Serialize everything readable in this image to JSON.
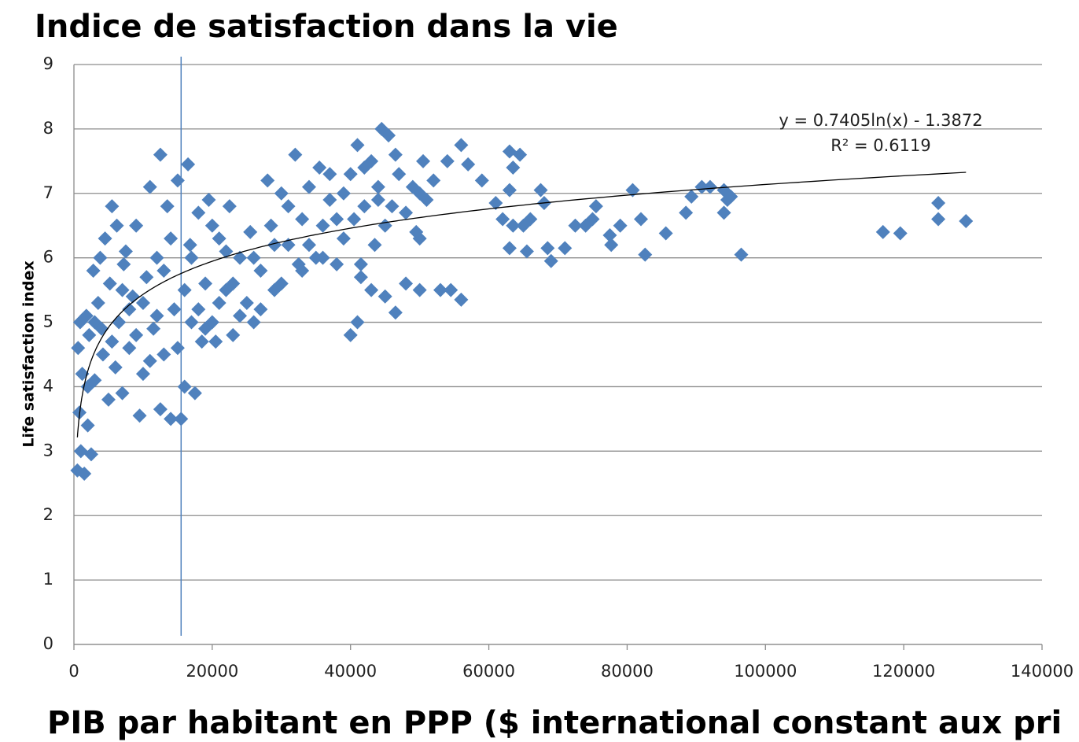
{
  "chart_data": {
    "type": "scatter",
    "title": "Indice de satisfaction dans la vie",
    "x_label": "PIB par habitant en PPP ($ international constant aux pri",
    "y_label": "Life satisfaction index",
    "color": "#4f81bd",
    "grid": true,
    "xlim": [
      0,
      140000
    ],
    "xticks": [
      0,
      20000,
      40000,
      60000,
      80000,
      100000,
      120000,
      140000
    ],
    "ylim": [
      0,
      9
    ],
    "yticks": [
      0,
      1,
      2,
      3,
      4,
      5,
      6,
      7,
      8,
      9
    ],
    "reference_line": {
      "x": 15500
    },
    "trendline": {
      "equation": "y = 0.7405ln(x) - 1.3872",
      "r_squared": "R² = 0.6119",
      "coefficient": 0.7405,
      "intercept": -1.3872
    },
    "x": [
      500,
      1500,
      1000,
      2500,
      800,
      1200,
      600,
      1800,
      2000,
      2200,
      900,
      2800,
      3000,
      3500,
      3800,
      4200,
      4500,
      5000,
      5200,
      5500,
      6000,
      6200,
      6500,
      7000,
      7200,
      7500,
      8000,
      8500,
      9000,
      9500,
      10000,
      10500,
      11000,
      11500,
      12000,
      12500,
      12500,
      13000,
      13500,
      14000,
      14500,
      15000,
      15500,
      16000,
      16500,
      16800,
      17000,
      17500,
      18000,
      18500,
      19000,
      19500,
      20000,
      20500,
      21000,
      22000,
      22500,
      23000,
      24000,
      25000,
      25500,
      26000,
      27000,
      28000,
      28500,
      29000,
      30000,
      31000,
      32000,
      32500,
      33000,
      34000,
      35000,
      35500,
      36000,
      37000,
      38000,
      39000,
      40000,
      40500,
      41000,
      41500,
      42000,
      43000,
      43500,
      44000,
      44500,
      45000,
      45500,
      46000,
      46500,
      47000,
      48000,
      49000,
      49500,
      50000,
      50500,
      51000,
      52000,
      50000,
      2000,
      3000,
      4000,
      5500,
      7000,
      8000,
      9000,
      10000,
      11000,
      12000,
      13000,
      14000,
      15000,
      16000,
      17000,
      18000,
      19000,
      20000,
      21000,
      22000,
      23000,
      24000,
      26000,
      27000,
      29000,
      30000,
      31000,
      33000,
      34000,
      36000,
      37000,
      38000,
      39000,
      42000,
      44000,
      50000,
      53000,
      54500,
      56000,
      48000,
      46500,
      45000,
      41000,
      40000,
      41500,
      43000,
      54000,
      56000,
      57000,
      59000,
      61000,
      62000,
      63000,
      63500,
      64500,
      63000,
      63500,
      63000,
      65000,
      66000,
      65500,
      67500,
      68000,
      68500,
      69000,
      71000,
      72500,
      74000,
      75000,
      75500,
      77500,
      77700,
      79000,
      80800,
      82000,
      82600,
      85600,
      88500,
      89300,
      90800,
      92000,
      94000,
      94500,
      94000,
      95000,
      96500,
      117000,
      119500,
      125000,
      125000,
      129000
    ],
    "values": [
      2.7,
      2.65,
      3.0,
      2.95,
      3.6,
      4.2,
      4.6,
      5.1,
      3.4,
      4.8,
      5.0,
      5.8,
      4.1,
      5.3,
      6.0,
      4.5,
      6.3,
      3.8,
      5.6,
      6.8,
      4.3,
      6.5,
      5.0,
      3.9,
      5.9,
      6.1,
      4.6,
      5.4,
      6.5,
      3.55,
      4.2,
      5.7,
      7.1,
      4.9,
      6.0,
      7.6,
      3.65,
      4.5,
      6.8,
      3.5,
      5.2,
      7.2,
      3.5,
      4.0,
      7.45,
      6.2,
      5.0,
      3.9,
      6.7,
      4.7,
      5.6,
      6.9,
      5.0,
      4.7,
      6.3,
      5.5,
      6.8,
      4.8,
      6.0,
      5.3,
      6.4,
      5.0,
      5.8,
      7.2,
      6.5,
      5.5,
      7.0,
      6.2,
      7.6,
      5.9,
      6.6,
      7.1,
      6.0,
      7.4,
      6.5,
      6.9,
      5.9,
      6.3,
      7.3,
      6.6,
      7.75,
      5.9,
      6.8,
      7.5,
      6.2,
      7.1,
      8.0,
      6.5,
      7.9,
      6.8,
      7.6,
      7.3,
      6.7,
      7.1,
      6.4,
      7.0,
      7.5,
      6.9,
      7.2,
      6.3,
      4.0,
      5.0,
      4.9,
      4.7,
      5.5,
      5.2,
      4.8,
      5.3,
      4.4,
      5.1,
      5.8,
      6.3,
      4.6,
      5.5,
      6.0,
      5.2,
      4.9,
      6.5,
      5.3,
      6.1,
      5.6,
      5.1,
      6.0,
      5.2,
      6.2,
      5.6,
      6.8,
      5.8,
      6.2,
      6.0,
      7.3,
      6.6,
      7.0,
      7.4,
      6.9,
      5.5,
      5.5,
      5.5,
      5.35,
      5.6,
      5.15,
      5.4,
      5.0,
      4.8,
      5.7,
      5.5,
      7.5,
      7.75,
      7.45,
      7.2,
      6.85,
      6.6,
      7.65,
      7.4,
      7.6,
      7.05,
      6.5,
      6.15,
      6.5,
      6.6,
      6.1,
      7.05,
      6.85,
      6.15,
      5.95,
      6.15,
      6.5,
      6.5,
      6.6,
      6.8,
      6.35,
      6.2,
      6.5,
      7.05,
      6.6,
      6.05,
      6.38,
      6.7,
      6.95,
      7.1,
      7.1,
      7.05,
      6.9,
      6.7,
      6.95,
      6.05,
      6.4,
      6.38,
      6.85,
      6.6,
      6.57
    ]
  }
}
